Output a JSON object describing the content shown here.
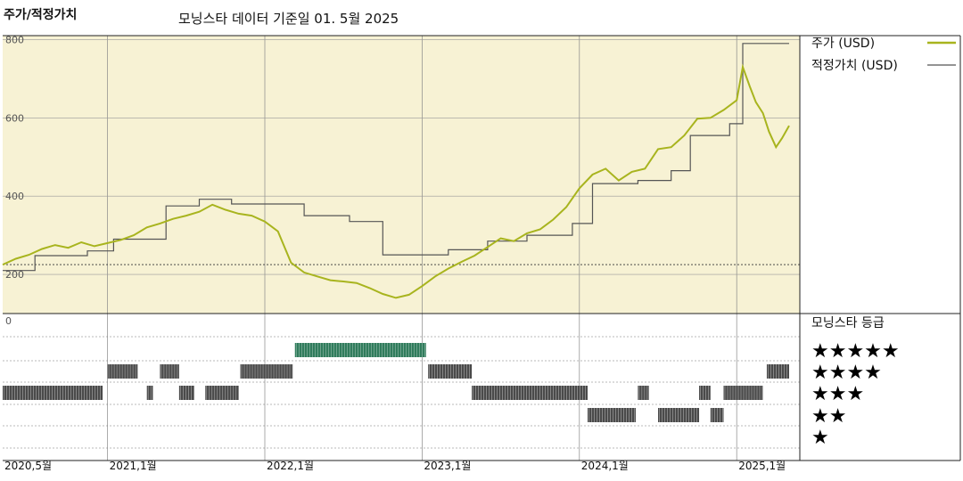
{
  "title": "주가/적정가치",
  "subtitle": "모닝스타 데이터 기준일 01. 5월 2025",
  "colors": {
    "price": "#a8b41e",
    "fair_value": "#555555",
    "plot_bg": "#f7f2d4",
    "rating_gray": "#4a4a4a",
    "rating_green": "#2e7a5a"
  },
  "chart_data": [
    {
      "type": "line",
      "x_range": [
        "2020-05",
        "2025-05"
      ],
      "ylim": [
        100,
        810
      ],
      "y_ticks": [
        200,
        400,
        600,
        800
      ],
      "y_tick_labels": [
        "200",
        "400",
        "600",
        "800"
      ],
      "reference_line": 225,
      "x_tick_labels": [
        "2020,5월",
        "2021,1월",
        "2022,1월",
        "2023,1월",
        "2024,1월",
        "2025,1월"
      ],
      "x_tick_dates": [
        "2020-05",
        "2021-01",
        "2022-01",
        "2023-01",
        "2024-01",
        "2025-01"
      ],
      "legend_placement": "top-right",
      "series": [
        {
          "name": "주가 (USD)",
          "points": [
            [
              "2020-05-01",
              225
            ],
            [
              "2020-06-01",
              240
            ],
            [
              "2020-07-01",
              250
            ],
            [
              "2020-08-01",
              265
            ],
            [
              "2020-09-01",
              275
            ],
            [
              "2020-10-01",
              268
            ],
            [
              "2020-11-01",
              282
            ],
            [
              "2020-12-01",
              272
            ],
            [
              "2021-01-01",
              280
            ],
            [
              "2021-02-01",
              288
            ],
            [
              "2021-03-01",
              300
            ],
            [
              "2021-04-01",
              320
            ],
            [
              "2021-05-01",
              330
            ],
            [
              "2021-06-01",
              342
            ],
            [
              "2021-07-01",
              350
            ],
            [
              "2021-08-01",
              360
            ],
            [
              "2021-09-01",
              378
            ],
            [
              "2021-10-01",
              365
            ],
            [
              "2021-11-01",
              355
            ],
            [
              "2021-12-01",
              350
            ],
            [
              "2022-01-01",
              335
            ],
            [
              "2022-02-01",
              310
            ],
            [
              "2022-03-01",
              230
            ],
            [
              "2022-04-01",
              205
            ],
            [
              "2022-05-01",
              195
            ],
            [
              "2022-06-01",
              185
            ],
            [
              "2022-07-01",
              182
            ],
            [
              "2022-08-01",
              178
            ],
            [
              "2022-09-01",
              165
            ],
            [
              "2022-10-01",
              150
            ],
            [
              "2022-11-01",
              140
            ],
            [
              "2022-12-01",
              148
            ],
            [
              "2023-01-01",
              170
            ],
            [
              "2023-02-01",
              195
            ],
            [
              "2023-03-01",
              215
            ],
            [
              "2023-04-01",
              232
            ],
            [
              "2023-05-01",
              248
            ],
            [
              "2023-06-01",
              270
            ],
            [
              "2023-07-01",
              292
            ],
            [
              "2023-08-01",
              285
            ],
            [
              "2023-09-01",
              305
            ],
            [
              "2023-10-01",
              315
            ],
            [
              "2023-11-01",
              340
            ],
            [
              "2023-12-01",
              372
            ],
            [
              "2024-01-01",
              420
            ],
            [
              "2024-02-01",
              455
            ],
            [
              "2024-03-01",
              470
            ],
            [
              "2024-04-01",
              440
            ],
            [
              "2024-05-01",
              462
            ],
            [
              "2024-06-01",
              470
            ],
            [
              "2024-07-01",
              520
            ],
            [
              "2024-08-01",
              525
            ],
            [
              "2024-09-01",
              555
            ],
            [
              "2024-10-01",
              598
            ],
            [
              "2024-11-01",
              600
            ],
            [
              "2024-12-01",
              620
            ],
            [
              "2025-01-01",
              645
            ],
            [
              "2025-01-15",
              730
            ],
            [
              "2025-02-01",
              680
            ],
            [
              "2025-02-15",
              640
            ],
            [
              "2025-03-01",
              612
            ],
            [
              "2025-03-15",
              565
            ],
            [
              "2025-04-01",
              525
            ],
            [
              "2025-04-15",
              548
            ],
            [
              "2025-05-01",
              580
            ]
          ]
        },
        {
          "name": "적정가치 (USD)",
          "step": true,
          "points": [
            [
              "2020-05-01",
              210
            ],
            [
              "2020-07-15",
              248
            ],
            [
              "2020-11-15",
              260
            ],
            [
              "2021-01-15",
              290
            ],
            [
              "2021-05-15",
              375
            ],
            [
              "2021-08-01",
              392
            ],
            [
              "2021-10-15",
              380
            ],
            [
              "2022-04-01",
              350
            ],
            [
              "2022-07-15",
              335
            ],
            [
              "2022-10-01",
              250
            ],
            [
              "2023-03-01",
              263
            ],
            [
              "2023-06-01",
              285
            ],
            [
              "2023-09-01",
              300
            ],
            [
              "2023-12-15",
              330
            ],
            [
              "2024-02-01",
              432
            ],
            [
              "2024-05-15",
              440
            ],
            [
              "2024-08-01",
              465
            ],
            [
              "2024-09-15",
              555
            ],
            [
              "2024-12-15",
              585
            ],
            [
              "2025-01-15",
              790
            ],
            [
              "2025-05-01",
              790
            ]
          ]
        }
      ]
    },
    {
      "type": "timeline",
      "title": "모닝스타 등급",
      "y_tick_label": "0",
      "levels": [
        5,
        4,
        3,
        2,
        1
      ],
      "level_labels": [
        "★★★★★",
        "★★★★",
        "★★★",
        "★★",
        "★"
      ],
      "periods": [
        {
          "level": 3,
          "start": "2020-05-01",
          "end": "2020-12-20"
        },
        {
          "level": 4,
          "start": "2021-01-01",
          "end": "2021-03-10"
        },
        {
          "level": 3,
          "start": "2021-04-01",
          "end": "2021-04-15"
        },
        {
          "level": 4,
          "start": "2021-05-01",
          "end": "2021-06-15"
        },
        {
          "level": 3,
          "start": "2021-06-15",
          "end": "2021-07-20"
        },
        {
          "level": 3,
          "start": "2021-08-15",
          "end": "2021-11-01"
        },
        {
          "level": 4,
          "start": "2021-11-05",
          "end": "2022-03-05"
        },
        {
          "level": 5,
          "start": "2022-03-10",
          "end": "2023-01-10"
        },
        {
          "level": 4,
          "start": "2023-01-15",
          "end": "2023-04-25"
        },
        {
          "level": 3,
          "start": "2023-04-25",
          "end": "2024-01-20"
        },
        {
          "level": 2,
          "start": "2024-01-20",
          "end": "2024-05-10"
        },
        {
          "level": 3,
          "start": "2024-05-15",
          "end": "2024-06-10"
        },
        {
          "level": 2,
          "start": "2024-07-01",
          "end": "2024-10-05"
        },
        {
          "level": 3,
          "start": "2024-10-05",
          "end": "2024-11-01"
        },
        {
          "level": 2,
          "start": "2024-11-01",
          "end": "2024-12-01"
        },
        {
          "level": 3,
          "start": "2024-12-01",
          "end": "2025-03-01"
        },
        {
          "level": 4,
          "start": "2025-03-10",
          "end": "2025-05-01"
        }
      ]
    }
  ]
}
